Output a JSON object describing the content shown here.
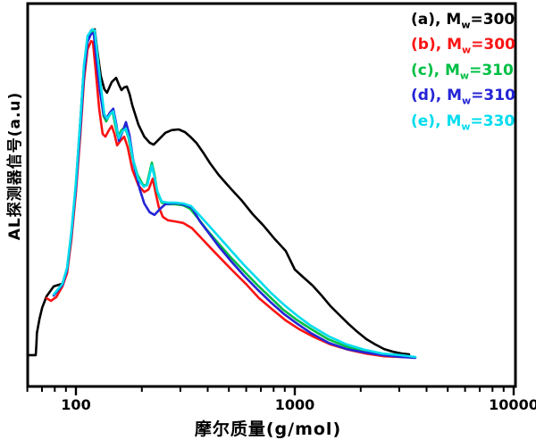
{
  "chart_data": {
    "type": "line",
    "title": "",
    "xlabel": "摩尔质量(g/mol)",
    "ylabel": "AL探测器信号(a.u)",
    "x_scale": "log",
    "x_range": [
      60,
      10500
    ],
    "y_range": [
      0,
      100
    ],
    "y_units": "a.u. (no y tick labels shown)",
    "grid": false,
    "x_major_ticks": [
      100,
      1000,
      10000
    ],
    "x_major_tick_labels": [
      "100",
      "1000",
      "10000"
    ],
    "x_minor_ticks": [
      60,
      70,
      80,
      90,
      200,
      300,
      400,
      500,
      600,
      700,
      800,
      900,
      2000,
      3000,
      4000,
      5000,
      6000,
      7000,
      8000,
      9000
    ],
    "legend_position": "top-right",
    "legend": [
      {
        "id": "a",
        "prefix": "(a), M",
        "sub": "w",
        "suffix": "=300",
        "color": "#000000"
      },
      {
        "id": "b",
        "prefix": "(b), M",
        "sub": "w",
        "suffix": "=300",
        "color": "#fa1414"
      },
      {
        "id": "c",
        "prefix": "(c), M",
        "sub": "w",
        "suffix": "=310",
        "color": "#00bf44"
      },
      {
        "id": "d",
        "prefix": "(d), M",
        "sub": "w",
        "suffix": "=310",
        "color": "#2424d6"
      },
      {
        "id": "e",
        "prefix": "(e), M",
        "sub": "w",
        "suffix": "=330",
        "color": "#00dcee"
      }
    ],
    "series": [
      {
        "name": "(a), Mw=300",
        "color": "#000000",
        "points": [
          [
            60.2,
            8.2
          ],
          [
            65.5,
            8.2
          ],
          [
            66,
            11.2
          ],
          [
            66.3,
            14.0
          ],
          [
            68.2,
            17.8
          ],
          [
            70.1,
            20.6
          ],
          [
            73.4,
            23.6
          ],
          [
            79.1,
            26.2
          ],
          [
            86.8,
            26.9
          ],
          [
            91.1,
            30.6
          ],
          [
            95.4,
            40.0
          ],
          [
            100,
            52.8
          ],
          [
            104.8,
            69.6
          ],
          [
            108.8,
            83.6
          ],
          [
            113,
            91.4
          ],
          [
            117.3,
            93.2
          ],
          [
            121.8,
            93.5
          ],
          [
            124.9,
            88.3
          ],
          [
            129.8,
            81.3
          ],
          [
            134.8,
            77.8
          ],
          [
            138.7,
            76.9
          ],
          [
            145.8,
            79.7
          ],
          [
            152.7,
            80.8
          ],
          [
            157.2,
            79.0
          ],
          [
            161.5,
            77.6
          ],
          [
            166.1,
            78.3
          ],
          [
            170.8,
            78.5
          ],
          [
            175.8,
            76.6
          ],
          [
            181,
            73.6
          ],
          [
            193.1,
            68.5
          ],
          [
            205.2,
            65.4
          ],
          [
            217.1,
            63.8
          ],
          [
            226.6,
            63.3
          ],
          [
            239.6,
            64.7
          ],
          [
            256.2,
            66.4
          ],
          [
            273.7,
            67.1
          ],
          [
            294.8,
            67.3
          ],
          [
            314.6,
            66.6
          ],
          [
            332.7,
            65.4
          ],
          [
            354.8,
            63.8
          ],
          [
            383.9,
            61.0
          ],
          [
            410.3,
            58.4
          ],
          [
            448.4,
            55.4
          ],
          [
            507.9,
            51.9
          ],
          [
            569.3,
            48.8
          ],
          [
            642.6,
            45.1
          ],
          [
            719.7,
            42.1
          ],
          [
            809.6,
            38.6
          ],
          [
            908.9,
            35.5
          ],
          [
            1000,
            30.6
          ],
          [
            1098,
            28.5
          ],
          [
            1207,
            26.4
          ],
          [
            1326,
            23.8
          ],
          [
            1456,
            21.0
          ],
          [
            1600,
            18.7
          ],
          [
            1758,
            16.4
          ],
          [
            1931,
            14.3
          ],
          [
            2121,
            12.4
          ],
          [
            2331,
            11.0
          ],
          [
            2560,
            9.8
          ],
          [
            2813,
            9.1
          ],
          [
            3090,
            8.6
          ],
          [
            3331,
            8.4
          ]
        ]
      },
      {
        "name": "(b), Mw=300",
        "color": "#fa1414",
        "points": [
          [
            73.4,
            23.1
          ],
          [
            76.9,
            22.4
          ],
          [
            81.3,
            23.4
          ],
          [
            86.8,
            26.2
          ],
          [
            91.1,
            29.7
          ],
          [
            95.4,
            38.6
          ],
          [
            100,
            50.9
          ],
          [
            104.8,
            66.1
          ],
          [
            108.8,
            80.1
          ],
          [
            113,
            88.3
          ],
          [
            117.3,
            90.4
          ],
          [
            119.6,
            90.2
          ],
          [
            123,
            83.0
          ],
          [
            127.7,
            72.7
          ],
          [
            132.4,
            66.1
          ],
          [
            136.3,
            65.4
          ],
          [
            141.6,
            67.1
          ],
          [
            145.8,
            68.2
          ],
          [
            150,
            66.1
          ],
          [
            154.3,
            63.1
          ],
          [
            159.7,
            64.3
          ],
          [
            166.1,
            65.4
          ],
          [
            172.5,
            62.6
          ],
          [
            181,
            56.8
          ],
          [
            193.1,
            52.6
          ],
          [
            205.2,
            50.9
          ],
          [
            214.9,
            51.6
          ],
          [
            224.5,
            54.4
          ],
          [
            230.8,
            50.9
          ],
          [
            239,
            47.0
          ],
          [
            249.5,
            44.4
          ],
          [
            263.3,
            43.5
          ],
          [
            284.2,
            43.2
          ],
          [
            308.9,
            42.8
          ],
          [
            339.3,
            41.4
          ],
          [
            372.1,
            39.0
          ],
          [
            410.3,
            36.4
          ],
          [
            457,
            33.6
          ],
          [
            518,
            30.4
          ],
          [
            597,
            26.9
          ],
          [
            686.6,
            23.1
          ],
          [
            792,
            20.1
          ],
          [
            908.9,
            17.3
          ],
          [
            1047,
            15.0
          ],
          [
            1207,
            13.1
          ],
          [
            1456,
            11.0
          ],
          [
            1758,
            9.6
          ],
          [
            2121,
            8.6
          ],
          [
            2560,
            7.9
          ],
          [
            3053,
            7.7
          ],
          [
            3413,
            7.7
          ]
        ]
      },
      {
        "name": "(c), Mw=310",
        "color": "#00bf44",
        "points": [
          [
            79.1,
            23.8
          ],
          [
            86.8,
            26.6
          ],
          [
            91.1,
            30.8
          ],
          [
            95.4,
            40.2
          ],
          [
            100,
            53.0
          ],
          [
            104.8,
            68.7
          ],
          [
            108.8,
            82.5
          ],
          [
            113,
            90.7
          ],
          [
            117.3,
            92.8
          ],
          [
            120.6,
            92.8
          ],
          [
            124,
            86.4
          ],
          [
            128.9,
            77.8
          ],
          [
            133.7,
            70.8
          ],
          [
            137.5,
            69.4
          ],
          [
            143,
            71.3
          ],
          [
            147,
            72.0
          ],
          [
            151.1,
            68.5
          ],
          [
            155.4,
            65.4
          ],
          [
            161.5,
            67.1
          ],
          [
            167.7,
            67.8
          ],
          [
            174.1,
            65.0
          ],
          [
            181,
            60.0
          ],
          [
            191.3,
            55.4
          ],
          [
            202.4,
            52.8
          ],
          [
            210.1,
            52.6
          ],
          [
            222.3,
            58.6
          ],
          [
            228.7,
            55.4
          ],
          [
            235.1,
            50.9
          ],
          [
            246.6,
            48.1
          ],
          [
            263.3,
            47.7
          ],
          [
            284.2,
            47.7
          ],
          [
            308.9,
            47.4
          ],
          [
            332.7,
            46.5
          ],
          [
            362.5,
            43.9
          ],
          [
            397.9,
            40.9
          ],
          [
            448.4,
            37.4
          ],
          [
            507.9,
            33.9
          ],
          [
            580.4,
            30.4
          ],
          [
            673.4,
            26.6
          ],
          [
            769.8,
            23.4
          ],
          [
            885.1,
            20.1
          ],
          [
            1017,
            17.5
          ],
          [
            1172,
            15.2
          ],
          [
            1415,
            12.4
          ],
          [
            1709,
            10.5
          ],
          [
            2063,
            9.1
          ],
          [
            2489,
            8.4
          ],
          [
            2950,
            7.9
          ],
          [
            3331,
            7.7
          ]
        ]
      },
      {
        "name": "(d), Mw=310",
        "color": "#2424d6",
        "points": [
          [
            79.1,
            23.8
          ],
          [
            86.8,
            26.6
          ],
          [
            91.1,
            30.6
          ],
          [
            95.4,
            40.0
          ],
          [
            100,
            52.3
          ],
          [
            104.8,
            68.0
          ],
          [
            108.8,
            81.8
          ],
          [
            113,
            90.2
          ],
          [
            117.3,
            92.3
          ],
          [
            120.6,
            92.5
          ],
          [
            124,
            85.7
          ],
          [
            128.9,
            77.1
          ],
          [
            133.7,
            71.3
          ],
          [
            137.5,
            70.1
          ],
          [
            143,
            71.7
          ],
          [
            148.1,
            72.7
          ],
          [
            152.7,
            68.9
          ],
          [
            157.2,
            64.3
          ],
          [
            163,
            66.6
          ],
          [
            169.2,
            69.2
          ],
          [
            175.8,
            65.7
          ],
          [
            184.2,
            57.9
          ],
          [
            195.9,
            51.6
          ],
          [
            205.2,
            47.9
          ],
          [
            217.1,
            45.6
          ],
          [
            228.7,
            44.9
          ],
          [
            242.3,
            46.5
          ],
          [
            256.2,
            47.7
          ],
          [
            273.7,
            47.9
          ],
          [
            294.8,
            47.9
          ],
          [
            317.6,
            47.4
          ],
          [
            339.3,
            46.7
          ],
          [
            368.6,
            43.2
          ],
          [
            406.4,
            40.0
          ],
          [
            452.7,
            36.4
          ],
          [
            513,
            32.7
          ],
          [
            586,
            29.0
          ],
          [
            680.3,
            25.2
          ],
          [
            777.6,
            22.0
          ],
          [
            894.9,
            18.9
          ],
          [
            1027,
            16.4
          ],
          [
            1183,
            14.0
          ],
          [
            1429,
            11.4
          ],
          [
            1725,
            9.8
          ],
          [
            2083,
            8.9
          ],
          [
            2513,
            8.2
          ],
          [
            3053,
            7.7
          ],
          [
            3556,
            7.5
          ]
        ]
      },
      {
        "name": "(e), Mw=330",
        "color": "#00dcee",
        "points": [
          [
            79.1,
            24.1
          ],
          [
            86.8,
            26.9
          ],
          [
            91.1,
            31.1
          ],
          [
            95.4,
            40.7
          ],
          [
            100,
            53.5
          ],
          [
            104.8,
            69.9
          ],
          [
            108.8,
            84.1
          ],
          [
            113,
            91.8
          ],
          [
            118.7,
            93.5
          ],
          [
            121.8,
            93.2
          ],
          [
            124.9,
            87.6
          ],
          [
            129.8,
            78.7
          ],
          [
            134.8,
            71.3
          ],
          [
            138.7,
            70.1
          ],
          [
            144.4,
            71.5
          ],
          [
            148.1,
            72.0
          ],
          [
            152.7,
            68.2
          ],
          [
            157.2,
            65.0
          ],
          [
            163,
            66.8
          ],
          [
            169.2,
            67.5
          ],
          [
            175.8,
            64.5
          ],
          [
            182.7,
            59.1
          ],
          [
            193.1,
            54.2
          ],
          [
            204.3,
            52.3
          ],
          [
            212.1,
            52.8
          ],
          [
            222.3,
            57.9
          ],
          [
            228.7,
            54.7
          ],
          [
            235.1,
            51.2
          ],
          [
            246.6,
            48.4
          ],
          [
            263.3,
            48.1
          ],
          [
            284.2,
            48.1
          ],
          [
            308.9,
            47.9
          ],
          [
            336.1,
            47.2
          ],
          [
            365.5,
            44.9
          ],
          [
            402.2,
            42.3
          ],
          [
            452.7,
            39.0
          ],
          [
            513,
            35.5
          ],
          [
            586,
            31.8
          ],
          [
            680.3,
            28.0
          ],
          [
            777.6,
            24.5
          ],
          [
            894.9,
            21.3
          ],
          [
            1027,
            18.5
          ],
          [
            1183,
            15.9
          ],
          [
            1429,
            13.1
          ],
          [
            1725,
            11.0
          ],
          [
            2083,
            9.6
          ],
          [
            2513,
            8.6
          ],
          [
            3053,
            8.2
          ],
          [
            3556,
            7.7
          ]
        ]
      }
    ]
  },
  "layout_colors": {
    "axis": "#000000",
    "background": "#ffffff"
  }
}
